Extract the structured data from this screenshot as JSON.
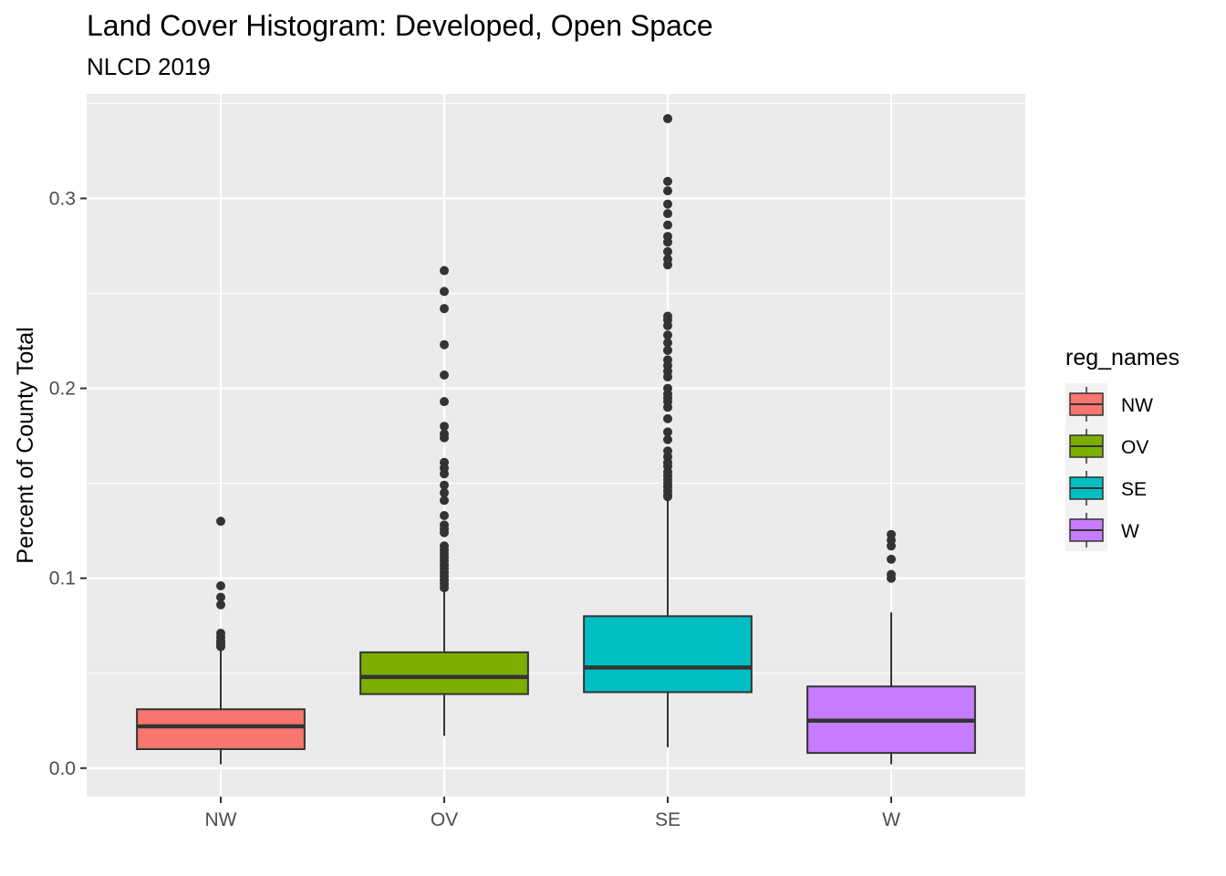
{
  "chart_data": {
    "type": "boxplot",
    "title": "Land Cover Histogram: Developed, Open Space",
    "subtitle": "NLCD 2019",
    "xlabel": "",
    "ylabel": "Percent of County Total",
    "ylim": [
      -0.015,
      0.355
    ],
    "y_ticks": [
      0.0,
      0.1,
      0.2,
      0.3
    ],
    "y_tick_labels": [
      "0.0",
      "0.1",
      "0.2",
      "0.3"
    ],
    "grid": true,
    "legend": {
      "title": "reg_names",
      "placement": "right"
    },
    "categories": [
      "NW",
      "OV",
      "SE",
      "W"
    ],
    "series": [
      {
        "name": "NW",
        "color": "#F8766D",
        "whisker_low": 0.002,
        "q1": 0.01,
        "median": 0.022,
        "q3": 0.031,
        "whisker_high": 0.063,
        "outliers": [
          0.13,
          0.096,
          0.09,
          0.086,
          0.071,
          0.069,
          0.067,
          0.066,
          0.065,
          0.064
        ]
      },
      {
        "name": "OV",
        "color": "#7CAE00",
        "whisker_low": 0.017,
        "q1": 0.039,
        "median": 0.048,
        "q3": 0.061,
        "whisker_high": 0.094,
        "outliers": [
          0.262,
          0.251,
          0.242,
          0.223,
          0.207,
          0.193,
          0.18,
          0.176,
          0.174,
          0.161,
          0.158,
          0.155,
          0.149,
          0.145,
          0.141,
          0.133,
          0.128,
          0.126,
          0.124,
          0.117,
          0.115,
          0.113,
          0.111,
          0.109,
          0.107,
          0.105,
          0.103,
          0.101,
          0.099,
          0.097,
          0.095
        ]
      },
      {
        "name": "SE",
        "color": "#00BFC4",
        "whisker_low": 0.011,
        "q1": 0.04,
        "median": 0.053,
        "q3": 0.08,
        "whisker_high": 0.141,
        "outliers": [
          0.342,
          0.309,
          0.304,
          0.297,
          0.292,
          0.286,
          0.28,
          0.277,
          0.272,
          0.268,
          0.265,
          0.238,
          0.236,
          0.233,
          0.228,
          0.224,
          0.22,
          0.215,
          0.212,
          0.209,
          0.206,
          0.2,
          0.197,
          0.195,
          0.193,
          0.19,
          0.184,
          0.177,
          0.173,
          0.167,
          0.164,
          0.161,
          0.159,
          0.156,
          0.154,
          0.152,
          0.15,
          0.148,
          0.146,
          0.144,
          0.143
        ]
      },
      {
        "name": "W",
        "color": "#C77CFF",
        "whisker_low": 0.002,
        "q1": 0.008,
        "median": 0.025,
        "q3": 0.043,
        "whisker_high": 0.082,
        "outliers": [
          0.123,
          0.12,
          0.117,
          0.11,
          0.102,
          0.1
        ]
      }
    ],
    "colors": {
      "panel_background": "#EBEBEB",
      "grid_major": "#FFFFFF",
      "box_outline": "#333333",
      "outlier_point": "#333333"
    }
  }
}
